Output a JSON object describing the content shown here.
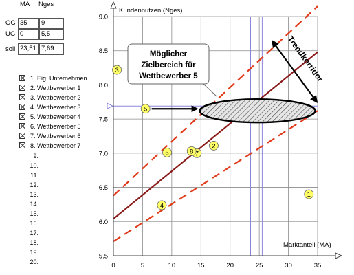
{
  "table": {
    "headers": [
      "MA",
      "Nges"
    ],
    "rows": [
      {
        "label": "OG",
        "ma": "35",
        "nges": "9"
      },
      {
        "label": "UG",
        "ma": "0",
        "nges": "5,5"
      },
      {
        "label": "soll",
        "ma": "23,51",
        "nges": "7,69"
      }
    ]
  },
  "legend": {
    "items": [
      "1. Eig. Unternehmen",
      "2. Wettbewerber 1",
      "3. Wettbewerber 2",
      "4. Wettbewerber 3",
      "5. Wettbewerber 4",
      "6. Wettbewerber 5",
      "7. Wettbewerber 6",
      "8. Wettbewerber 7"
    ],
    "empty_numbers": [
      "9.",
      "10.",
      "11.",
      "12.",
      "13.",
      "14.",
      "15.",
      "16.",
      "17.",
      "18.",
      "19.",
      "20."
    ]
  },
  "chart_data": {
    "type": "scatter",
    "xlabel": "Marktanteil (MA)",
    "ylabel": "Kundennutzen (Nges)",
    "xlim": [
      0,
      35
    ],
    "ylim": [
      5.5,
      9.0
    ],
    "xticks": [
      "0",
      "5",
      "10",
      "15",
      "20",
      "25",
      "30",
      "35"
    ],
    "yticks": [
      "5.5",
      "6.0",
      "6.5",
      "7.0",
      "7.5",
      "8.0",
      "8.5",
      "9.0"
    ],
    "points": [
      {
        "label": "1",
        "x": 33.5,
        "y": 6.4
      },
      {
        "label": "2",
        "x": 17.2,
        "y": 7.11
      },
      {
        "label": "3",
        "x": 0.6,
        "y": 8.22
      },
      {
        "label": "4",
        "x": 8.3,
        "y": 6.24
      },
      {
        "label": "5",
        "x": 5.5,
        "y": 7.65
      },
      {
        "label": "6",
        "x": 9.2,
        "y": 7.01
      },
      {
        "label": "7",
        "x": 14.3,
        "y": 7.0
      },
      {
        "label": "8",
        "x": 13.4,
        "y": 7.03
      }
    ],
    "trend_line": {
      "x": [
        0,
        35
      ],
      "y": [
        6.04,
        8.48
      ]
    },
    "corridor_upper": {
      "x": [
        0,
        35
      ],
      "y": [
        6.38,
        9.15
      ]
    },
    "corridor_lower": {
      "x": [
        0,
        35
      ],
      "y": [
        5.71,
        7.62
      ]
    },
    "target_ellipse": {
      "cx": 24.7,
      "cy": 7.62,
      "rx": 9.9,
      "ry": 0.17
    },
    "soll_lines": {
      "x": 23.51,
      "y": 7.69
    },
    "extra_vline_x": 25.5,
    "annotations": {
      "box_lines": [
        "Möglicher",
        "Zielbereich für",
        "Wettbewerber 5"
      ],
      "trend_label": "Trendkorridor"
    },
    "colors": {
      "trend": "#8b1a1a",
      "corridor": "#e03a1a",
      "soll": "#8a86e0",
      "point_fill": "#ffff66"
    }
  }
}
